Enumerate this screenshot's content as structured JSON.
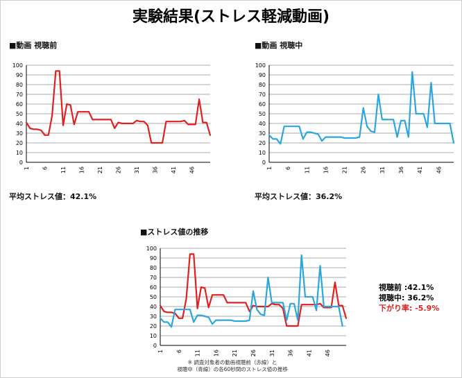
{
  "title": "実験結果(ストレス軽減動画)",
  "charts": {
    "before": {
      "heading": "■動画 視聴前",
      "avg_text": "平均ストレス値：42.1%"
    },
    "during": {
      "heading": "■動画 視聴中",
      "avg_text": "平均ストレス値：36.2%"
    },
    "trend": {
      "heading": "■ストレス値の推移"
    }
  },
  "legend": {
    "before": "視聴前 :42.1%",
    "during": "視聴中: 36.2%",
    "drop": "下がり率: -5.9%"
  },
  "note": {
    "line1": "※ 調査対象者の動画視聴前（赤線）と",
    "line2": "視聴中（青線）の各60秒間のストレス値の推移"
  },
  "colors": {
    "before": "#e02020",
    "during": "#2aa6df",
    "drop_text": "#e02020"
  },
  "chart_data": [
    {
      "type": "line",
      "title": "■動画 視聴前",
      "ylim": [
        0,
        100
      ],
      "yticks": [
        0,
        10,
        20,
        30,
        40,
        50,
        60,
        70,
        80,
        90,
        100
      ],
      "xtick_labels": [
        "1",
        "6",
        "11",
        "16",
        "21",
        "26",
        "31",
        "36",
        "41",
        "46"
      ],
      "series": [
        {
          "color": "#e02020",
          "values": [
            41,
            35,
            34,
            34,
            33,
            28,
            28,
            48,
            94,
            94,
            38,
            60,
            59,
            39,
            52,
            52,
            52,
            52,
            44,
            44,
            44,
            44,
            44,
            44,
            35,
            41,
            40,
            40,
            40,
            40,
            43,
            42,
            42,
            38,
            20,
            20,
            20,
            20,
            42,
            42,
            42,
            42,
            42,
            43,
            39,
            39,
            39,
            65,
            41,
            41,
            28
          ]
        }
      ],
      "grid": true
    },
    {
      "type": "line",
      "title": "■動画 視聴中",
      "ylim": [
        0,
        100
      ],
      "yticks": [
        0,
        10,
        20,
        30,
        40,
        50,
        60,
        70,
        80,
        90,
        100
      ],
      "xtick_labels": [
        "1",
        "6",
        "11",
        "16",
        "21",
        "26",
        "31",
        "36",
        "41",
        "46"
      ],
      "series": [
        {
          "color": "#2aa6df",
          "values": [
            28,
            24,
            24,
            19,
            37,
            37,
            37,
            37,
            37,
            24,
            31,
            31,
            30,
            29,
            22,
            26,
            26,
            26,
            26,
            26,
            25,
            25,
            25,
            25,
            26,
            56,
            37,
            32,
            31,
            70,
            44,
            44,
            44,
            44,
            26,
            43,
            43,
            26,
            93,
            50,
            50,
            50,
            36,
            82,
            40,
            40,
            40,
            40,
            40,
            20
          ]
        }
      ],
      "grid": true
    },
    {
      "type": "line",
      "title": "■ストレス値の推移",
      "ylim": [
        0,
        100
      ],
      "yticks": [
        0,
        10,
        20,
        30,
        40,
        50,
        60,
        70,
        80,
        90,
        100
      ],
      "xtick_labels": [
        "1",
        "6",
        "11",
        "16",
        "21",
        "26",
        "31",
        "36",
        "41",
        "46"
      ],
      "series": [
        {
          "color": "#e02020",
          "values": [
            41,
            35,
            34,
            34,
            33,
            28,
            28,
            48,
            94,
            94,
            38,
            60,
            59,
            39,
            52,
            52,
            52,
            52,
            44,
            44,
            44,
            44,
            44,
            44,
            35,
            41,
            40,
            40,
            40,
            40,
            43,
            42,
            42,
            38,
            20,
            20,
            20,
            20,
            42,
            42,
            42,
            42,
            42,
            43,
            39,
            39,
            39,
            65,
            41,
            41,
            28
          ]
        },
        {
          "color": "#2aa6df",
          "values": [
            28,
            24,
            24,
            19,
            37,
            37,
            37,
            37,
            37,
            24,
            31,
            31,
            30,
            29,
            22,
            26,
            26,
            26,
            26,
            26,
            25,
            25,
            25,
            25,
            26,
            56,
            37,
            32,
            31,
            70,
            44,
            44,
            44,
            44,
            26,
            43,
            43,
            26,
            93,
            50,
            50,
            50,
            36,
            82,
            40,
            40,
            40,
            40,
            40,
            20
          ]
        }
      ],
      "grid": true
    }
  ]
}
